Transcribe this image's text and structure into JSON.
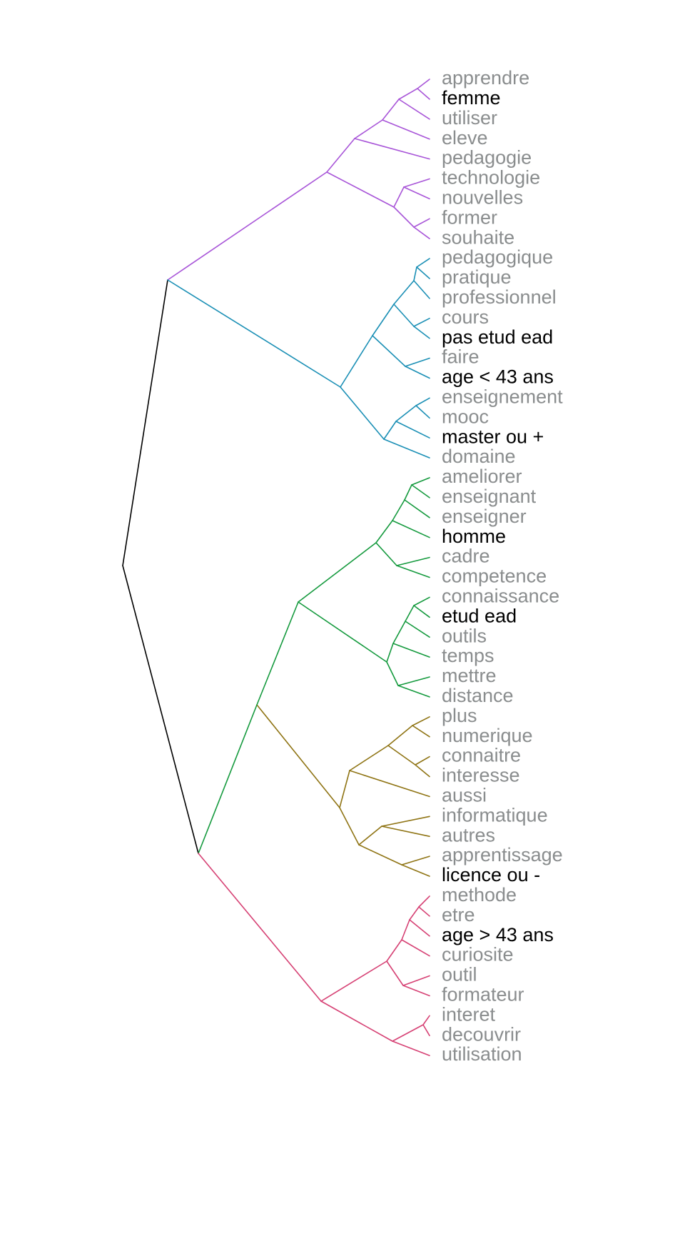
{
  "colors": {
    "root": "#000000",
    "purple": "#a855d8",
    "blue": "#1a8fb5",
    "green": "#159a3e",
    "olive": "#8f7414",
    "red": "#d64174",
    "label_word": "#8a8d8e",
    "label_variable": "#000000"
  },
  "leaves": [
    {
      "label": "apprendre",
      "kind": "word"
    },
    {
      "label": "femme",
      "kind": "variable"
    },
    {
      "label": "utiliser",
      "kind": "word"
    },
    {
      "label": "eleve",
      "kind": "word"
    },
    {
      "label": "pedagogie",
      "kind": "word"
    },
    {
      "label": "technologie",
      "kind": "word"
    },
    {
      "label": "nouvelles",
      "kind": "word"
    },
    {
      "label": "former",
      "kind": "word"
    },
    {
      "label": "souhaite",
      "kind": "word"
    },
    {
      "label": "pedagogique",
      "kind": "word"
    },
    {
      "label": "pratique",
      "kind": "word"
    },
    {
      "label": "professionnel",
      "kind": "word"
    },
    {
      "label": "cours",
      "kind": "word"
    },
    {
      "label": "pas etud ead",
      "kind": "variable"
    },
    {
      "label": "faire",
      "kind": "word"
    },
    {
      "label": "age < 43 ans",
      "kind": "variable"
    },
    {
      "label": "enseignement",
      "kind": "word"
    },
    {
      "label": "mooc",
      "kind": "word"
    },
    {
      "label": "master ou +",
      "kind": "variable"
    },
    {
      "label": "domaine",
      "kind": "word"
    },
    {
      "label": "ameliorer",
      "kind": "word"
    },
    {
      "label": "enseignant",
      "kind": "word"
    },
    {
      "label": "enseigner",
      "kind": "word"
    },
    {
      "label": "homme",
      "kind": "variable"
    },
    {
      "label": "cadre",
      "kind": "word"
    },
    {
      "label": "competence",
      "kind": "word"
    },
    {
      "label": "connaissance",
      "kind": "word"
    },
    {
      "label": "etud ead",
      "kind": "variable"
    },
    {
      "label": "outils",
      "kind": "word"
    },
    {
      "label": "temps",
      "kind": "word"
    },
    {
      "label": "mettre",
      "kind": "word"
    },
    {
      "label": "distance",
      "kind": "word"
    },
    {
      "label": "plus",
      "kind": "word"
    },
    {
      "label": "numerique",
      "kind": "word"
    },
    {
      "label": "connaitre",
      "kind": "word"
    },
    {
      "label": "interesse",
      "kind": "word"
    },
    {
      "label": "aussi",
      "kind": "word"
    },
    {
      "label": "informatique",
      "kind": "word"
    },
    {
      "label": "autres",
      "kind": "word"
    },
    {
      "label": "apprentissage",
      "kind": "word"
    },
    {
      "label": "licence ou -",
      "kind": "variable"
    },
    {
      "label": "methode",
      "kind": "word"
    },
    {
      "label": "etre",
      "kind": "word"
    },
    {
      "label": "age > 43 ans",
      "kind": "variable"
    },
    {
      "label": "curiosite",
      "kind": "word"
    },
    {
      "label": "outil",
      "kind": "word"
    },
    {
      "label": "formateur",
      "kind": "word"
    },
    {
      "label": "interet",
      "kind": "word"
    },
    {
      "label": "decouvrir",
      "kind": "word"
    },
    {
      "label": "utilisation",
      "kind": "word"
    }
  ],
  "clusters": [
    {
      "name": "purple",
      "color_key": "purple",
      "leaf_count": 9
    },
    {
      "name": "blue",
      "color_key": "blue",
      "leaf_count": 11
    },
    {
      "name": "green",
      "color_key": "green",
      "leaf_count": 12
    },
    {
      "name": "olive",
      "color_key": "olive",
      "leaf_count": 9
    },
    {
      "name": "red",
      "color_key": "red",
      "leaf_count": 9
    }
  ]
}
